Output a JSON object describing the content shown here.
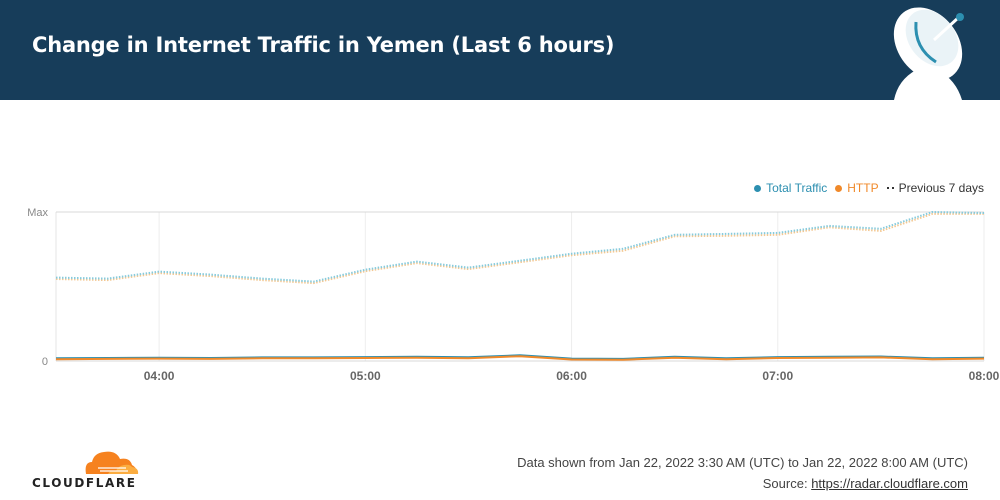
{
  "header": {
    "title": "Change in Internet Traffic in Yemen (Last 6 hours)"
  },
  "legend": {
    "total_traffic": "Total Traffic",
    "http": "HTTP",
    "previous": "Previous 7 days"
  },
  "footer": {
    "range_text": "Data shown from Jan 22, 2022 3:30 AM (UTC) to Jan 22, 2022 8:00 AM (UTC)",
    "source_label": "Source: ",
    "source_link": "https://radar.cloudflare.com",
    "logo_text": "CLOUDFLARE"
  },
  "colors": {
    "header_bg": "#173d5a",
    "total_traffic": "#2c8fb0",
    "http": "#f0892a",
    "previous_total": "#86cbdd",
    "previous_http": "#f3c892",
    "cloudflare_orange": "#f6821f"
  },
  "chart_data": {
    "type": "line",
    "x": [
      "03:30",
      "03:45",
      "04:00",
      "04:15",
      "04:30",
      "04:45",
      "05:00",
      "05:15",
      "05:30",
      "05:45",
      "06:00",
      "06:15",
      "06:30",
      "06:45",
      "07:00",
      "07:15",
      "07:30",
      "07:45",
      "08:00"
    ],
    "x_ticks": [
      "04:00",
      "05:00",
      "06:00",
      "07:00",
      "08:00"
    ],
    "y_ticks": [
      "Max",
      "0"
    ],
    "ylim": [
      0,
      100
    ],
    "series": [
      {
        "name": "Total Traffic",
        "values": [
          1.8,
          2.0,
          2.2,
          2.0,
          2.4,
          2.4,
          2.6,
          2.8,
          2.5,
          3.8,
          1.6,
          1.4,
          2.8,
          1.8,
          2.6,
          2.8,
          3.0,
          1.8,
          2.2
        ]
      },
      {
        "name": "HTTP",
        "values": [
          1.2,
          1.4,
          1.6,
          1.4,
          1.8,
          1.8,
          2.0,
          2.2,
          1.9,
          3.2,
          1.0,
          0.9,
          2.2,
          1.2,
          2.0,
          2.2,
          2.4,
          1.2,
          1.6
        ]
      },
      {
        "name": "Previous 7 days",
        "values": [
          56.0,
          55.3,
          60.0,
          58.0,
          55.3,
          53.3,
          61.3,
          66.7,
          62.7,
          67.3,
          72.0,
          75.3,
          84.7,
          85.3,
          86.0,
          90.7,
          88.7,
          100.0,
          99.3
        ]
      },
      {
        "name": "Previous 7 days",
        "values": [
          55.0,
          54.3,
          59.0,
          57.0,
          54.3,
          52.3,
          60.3,
          65.7,
          61.7,
          66.3,
          71.0,
          74.0,
          83.7,
          84.0,
          84.7,
          89.7,
          87.3,
          98.7,
          98.7
        ]
      }
    ]
  }
}
